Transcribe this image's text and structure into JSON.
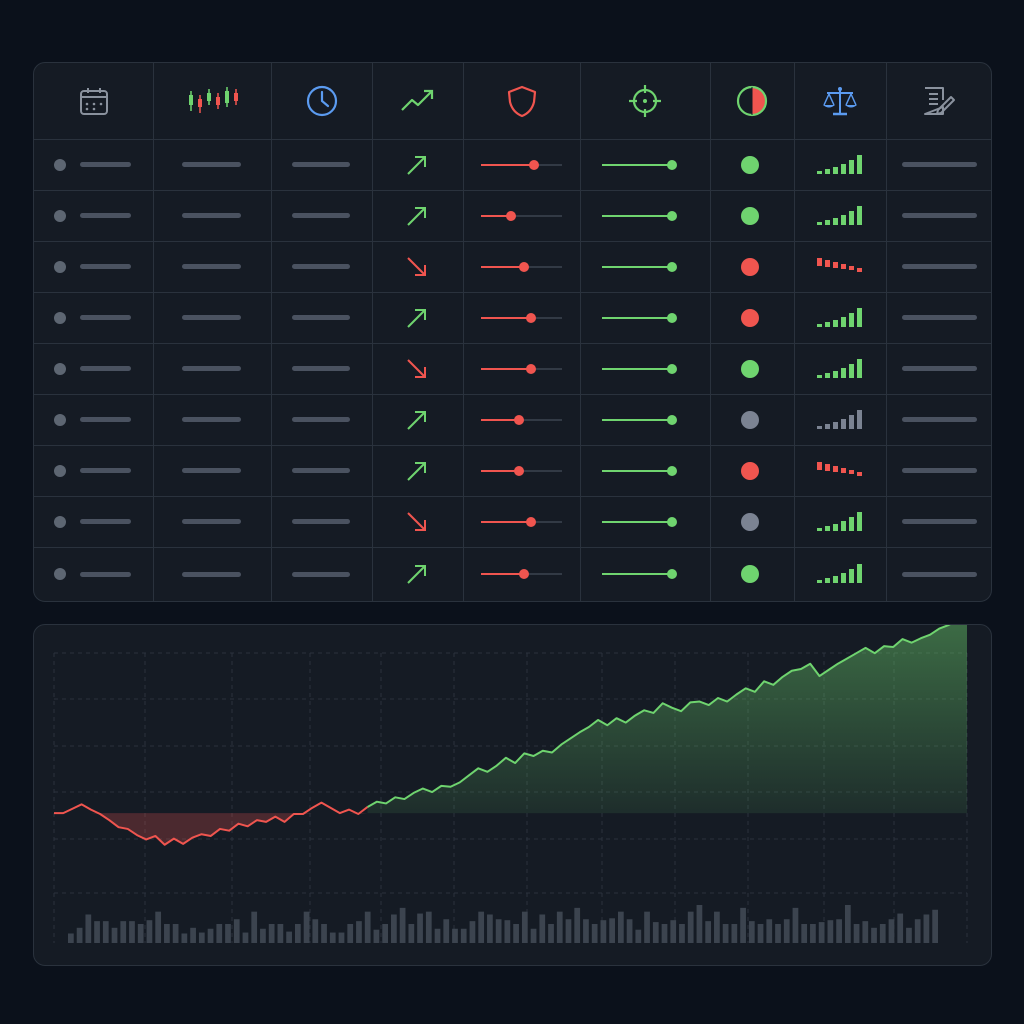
{
  "colors": {
    "background": "#0b111b",
    "panel": "#151b24",
    "border": "#2a323d",
    "placeholder_bar": "#4a5260",
    "muted_dot": "#5d6672",
    "positive": "#6fd46f",
    "negative": "#f0554f",
    "neutral": "#7b8392",
    "accent_blue": "#5b9bf0"
  },
  "table": {
    "header_icons": [
      "calendar-icon",
      "candlestick-icon",
      "clock-icon",
      "trend-up-icon",
      "shield-icon",
      "target-icon",
      "half-circle-icon",
      "balance-scale-icon",
      "notes-edit-icon"
    ],
    "rows": [
      {
        "direction": "up",
        "risk_level": 0.88,
        "target_level": 1.0,
        "status": "positive",
        "signal": "up-green"
      },
      {
        "direction": "up",
        "risk_level": 0.5,
        "target_level": 1.0,
        "status": "positive",
        "signal": "up-green"
      },
      {
        "direction": "down",
        "risk_level": 0.72,
        "target_level": 1.0,
        "status": "negative",
        "signal": "down-red"
      },
      {
        "direction": "up",
        "risk_level": 0.84,
        "target_level": 1.0,
        "status": "negative",
        "signal": "up-green"
      },
      {
        "direction": "down",
        "risk_level": 0.84,
        "target_level": 1.0,
        "status": "positive",
        "signal": "up-green"
      },
      {
        "direction": "up",
        "risk_level": 0.64,
        "target_level": 1.0,
        "status": "neutral",
        "signal": "up-gray"
      },
      {
        "direction": "up",
        "risk_level": 0.64,
        "target_level": 1.0,
        "status": "negative",
        "signal": "down-red"
      },
      {
        "direction": "down",
        "risk_level": 0.84,
        "target_level": 1.0,
        "status": "neutral",
        "signal": "up-green"
      },
      {
        "direction": "up",
        "risk_level": 0.72,
        "target_level": 1.0,
        "status": "positive",
        "signal": "up-green"
      }
    ]
  },
  "chart_data": {
    "type": "area",
    "title": "",
    "xlabel": "",
    "ylabel": "",
    "grid": true,
    "baseline": 0,
    "ylim": [
      -100,
      230
    ],
    "series": [
      {
        "values": [
          0,
          0,
          5,
          10,
          4,
          -1,
          -8,
          -16,
          -18,
          -25,
          -30,
          -26,
          -36,
          -29,
          -35,
          -28,
          -24,
          -26,
          -18,
          -20,
          -12,
          -15,
          -8,
          -10,
          -4,
          -10,
          -1,
          -1,
          6,
          12,
          6,
          0,
          4,
          -1,
          7,
          13,
          11,
          18,
          16,
          23,
          28,
          24,
          31,
          30,
          35,
          43,
          51,
          47,
          54,
          63,
          57,
          68,
          65,
          71,
          69,
          78,
          85,
          92,
          98,
          106,
          100,
          108,
          103,
          111,
          117,
          114,
          125,
          120,
          116,
          126,
          127,
          123,
          131,
          127,
          135,
          142,
          138,
          150,
          146,
          155,
          162,
          164,
          170,
          156,
          163,
          170,
          176,
          182,
          188,
          182,
          190,
          189,
          198,
          194,
          199,
          203,
          210,
          214,
          220,
          227
        ]
      }
    ],
    "volume": [
      10,
      16,
      30,
      23,
      23,
      16,
      23,
      23,
      20,
      24,
      33,
      20,
      20,
      10,
      16,
      11,
      15,
      20,
      20,
      25,
      11,
      33,
      15,
      20,
      20,
      12,
      20,
      33,
      25,
      20,
      11,
      11,
      20,
      23,
      33,
      14,
      20,
      30,
      37,
      20,
      31,
      33,
      15,
      25,
      15,
      15,
      23,
      33,
      30,
      25,
      24,
      20,
      33,
      15,
      30,
      20,
      33,
      25,
      37,
      25,
      20,
      24,
      26,
      33,
      25,
      14,
      33,
      22,
      20,
      24,
      20,
      33,
      40,
      23,
      33,
      20,
      20,
      37,
      23,
      20,
      25,
      20,
      25,
      37,
      20,
      20,
      22,
      24,
      25,
      40,
      20,
      23,
      16,
      20,
      25,
      31,
      16,
      25,
      30,
      35
    ],
    "volume_max": 40,
    "last_point_marker": true
  }
}
